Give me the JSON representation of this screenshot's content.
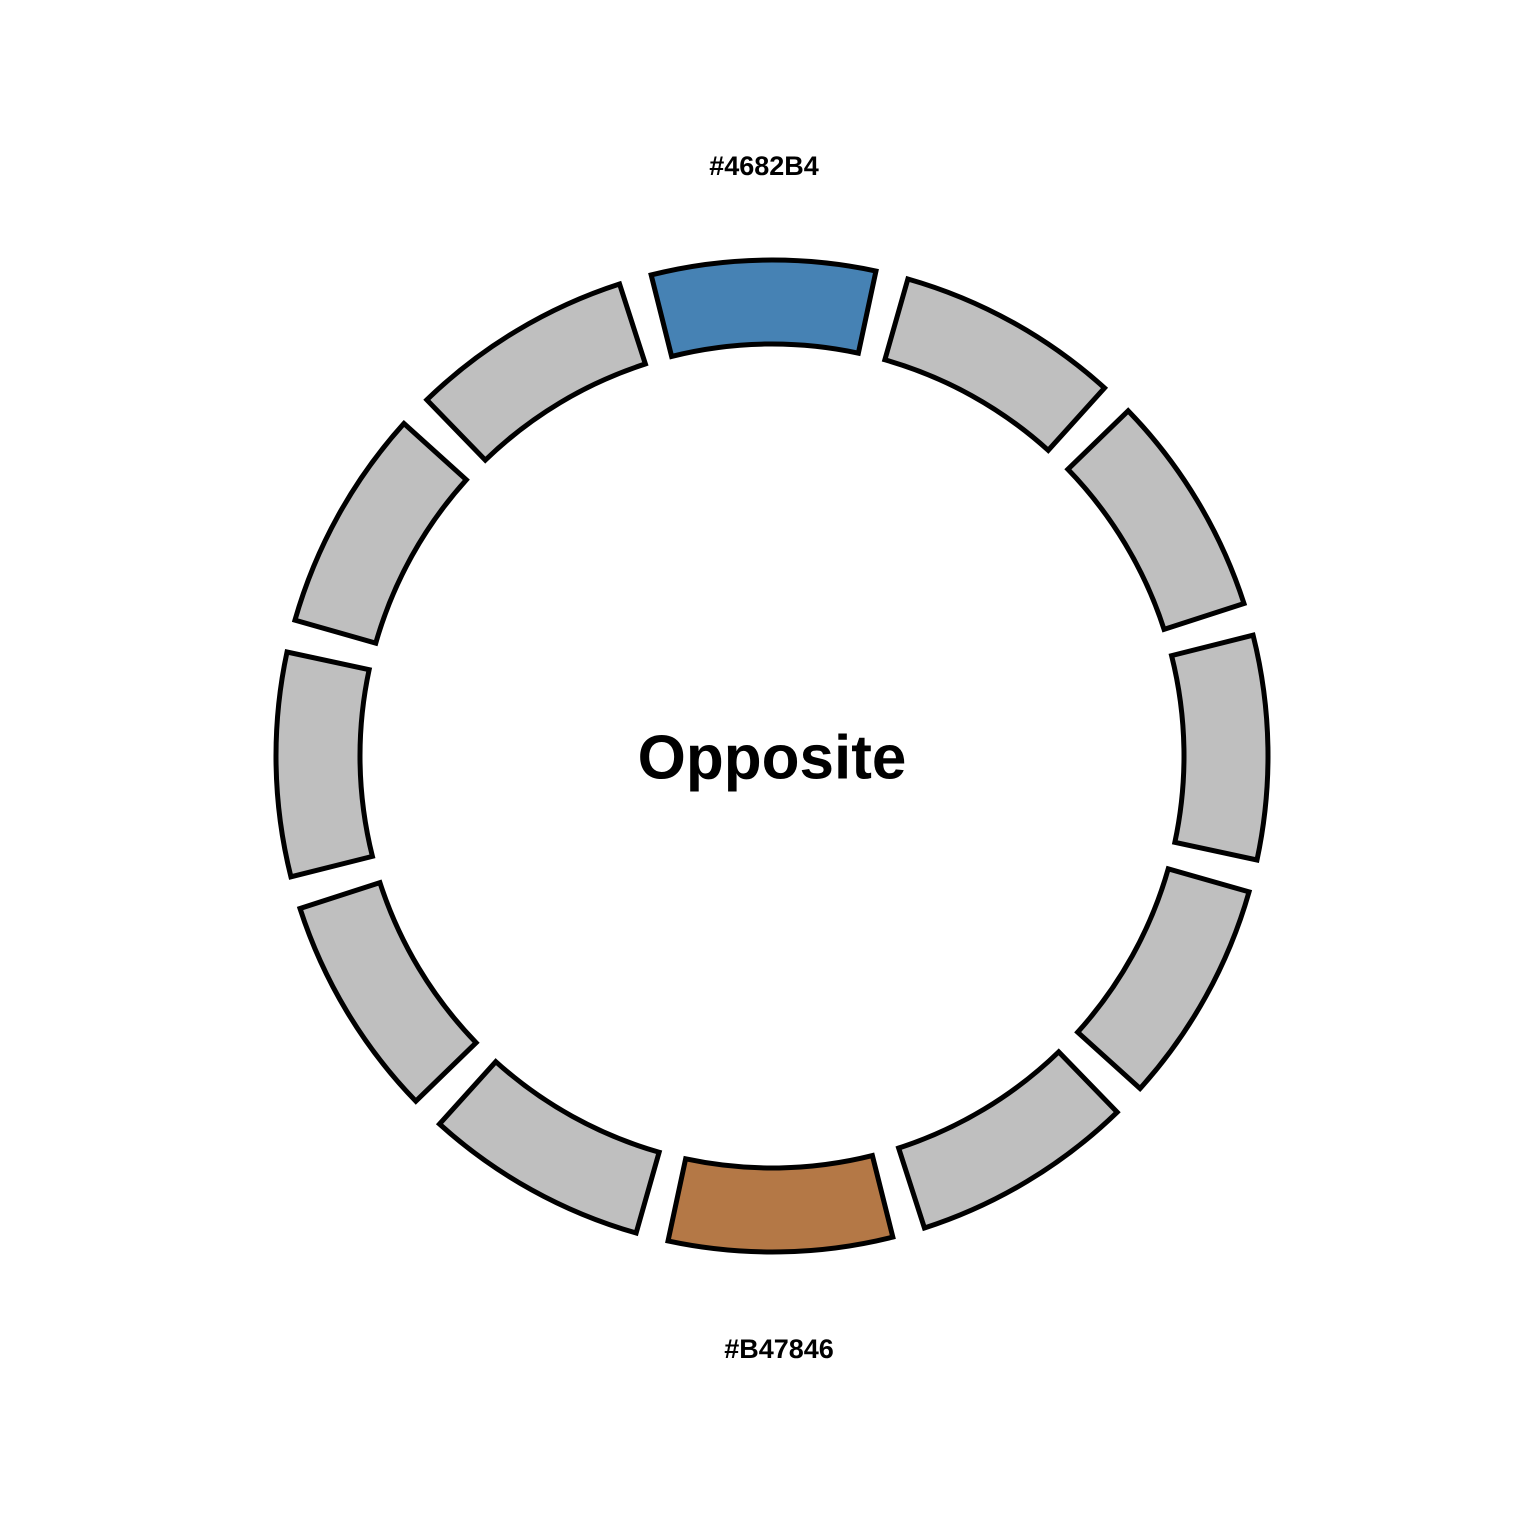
{
  "title": "Opposite",
  "segment_count": 12,
  "base_color": "#BFBFBF",
  "highlighted": [
    {
      "index": 0,
      "color": "#4682B4",
      "label": "#4682B4"
    },
    {
      "index": 6,
      "color": "#B47846",
      "label": "#B47846"
    }
  ]
}
